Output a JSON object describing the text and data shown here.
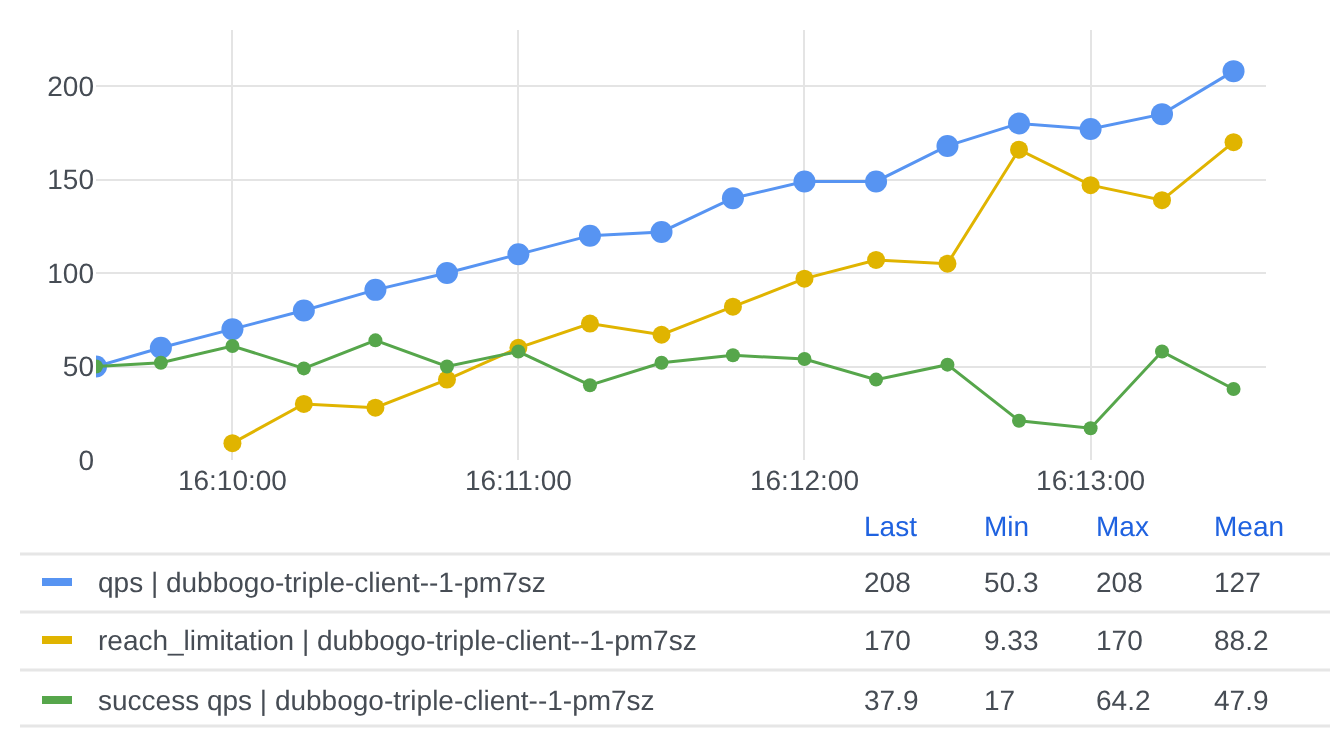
{
  "chart_data": {
    "type": "line",
    "x": [
      16.15872,
      16.1625,
      16.16667,
      16.17083,
      16.175,
      16.17917,
      16.18333,
      16.1875,
      16.19167,
      16.19583,
      16.2,
      16.20417,
      16.20833,
      16.2125,
      16.21667,
      16.22083,
      16.225
    ],
    "series": [
      {
        "name": "qps | dubbogo-triple-client--1-pm7sz",
        "color": "#5794f2",
        "values": [
          50,
          60,
          70,
          80,
          91,
          100,
          110,
          120,
          122,
          140,
          149,
          149,
          168,
          180,
          177,
          185,
          208
        ]
      },
      {
        "name": "reach_limitation | dubbogo-triple-client--1-pm7sz",
        "color": "#e0b400",
        "values": [
          null,
          null,
          9,
          30,
          28,
          43,
          60,
          73,
          67,
          82,
          97,
          107,
          105,
          166,
          147,
          139,
          170
        ]
      },
      {
        "name": "success qps | dubbogo-triple-client--1-pm7sz",
        "color": "#56a64b",
        "values": [
          50,
          52,
          61,
          49,
          64,
          50,
          58,
          40,
          52,
          56,
          54,
          43,
          51,
          21,
          17,
          58,
          38
        ]
      }
    ],
    "xlim": [
      16.15872,
      16.22689
    ],
    "xticks": [
      {
        "value": 16.16667,
        "label": "16:10:00"
      },
      {
        "value": 16.18333,
        "label": "16:11:00"
      },
      {
        "value": 16.2,
        "label": "16:12:00"
      },
      {
        "value": 16.21667,
        "label": "16:13:00"
      }
    ],
    "ylim": [
      0,
      230
    ],
    "yticks": [
      0,
      50,
      100,
      150,
      200
    ],
    "grid": true,
    "marker": "circle",
    "line_style": "solid",
    "legend": "bottom",
    "annotations": [
      "Last",
      "Min",
      "Max",
      "Mean",
      "208",
      "50.3",
      "208",
      "127",
      "170",
      "9.33",
      "170",
      "88.2",
      "37.9",
      "17",
      "64.2",
      "47.9"
    ]
  }
}
